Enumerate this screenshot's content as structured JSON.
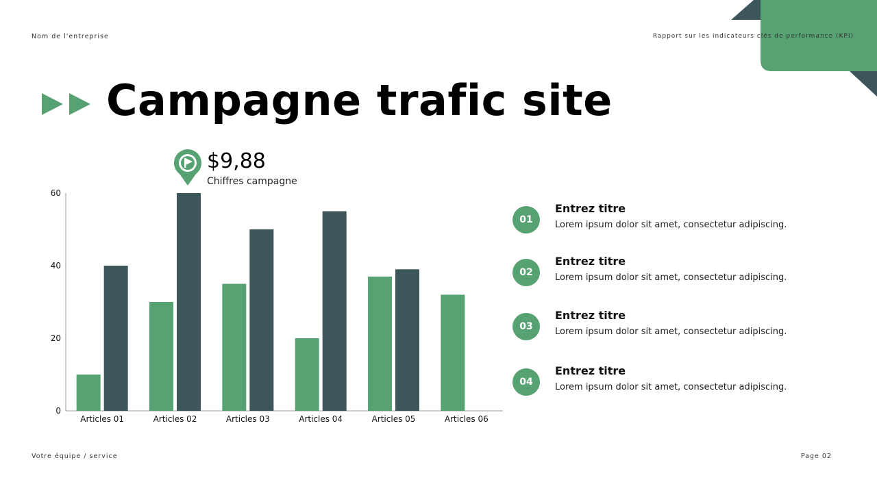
{
  "header": {
    "company": "Nom de l'entreprise",
    "report": "Rapport sur les indicateurs clés de performance (KPI)"
  },
  "title": "Campagne trafic site",
  "kpi": {
    "value": "$9,88",
    "label": "Chiffres campagne",
    "icon": "flag-pin-icon"
  },
  "colors": {
    "green": "#57a273",
    "dark": "#3c565b"
  },
  "chart_data": {
    "type": "bar",
    "categories": [
      "Articles 01",
      "Articles 02",
      "Articles 03",
      "Articles 04",
      "Articles 05",
      "Articles 06"
    ],
    "series": [
      {
        "values": [
          10,
          30,
          35,
          20,
          37,
          32
        ],
        "color": "#57a273"
      },
      {
        "values": [
          40,
          60,
          50,
          55,
          39,
          null
        ],
        "color": "#3c565b"
      }
    ],
    "ylim": [
      0,
      60
    ],
    "yticks": [
      "0",
      "20",
      "40",
      "60"
    ],
    "grid": false,
    "legend": "none"
  },
  "items": [
    {
      "num": "01",
      "title": "Entrez titre",
      "desc": "Lorem ipsum dolor sit amet, consectetur adipiscing."
    },
    {
      "num": "02",
      "title": "Entrez titre",
      "desc": "Lorem ipsum dolor sit amet, consectetur adipiscing."
    },
    {
      "num": "03",
      "title": "Entrez titre",
      "desc": "Lorem ipsum dolor sit amet, consectetur adipiscing."
    },
    {
      "num": "04",
      "title": "Entrez titre",
      "desc": "Lorem ipsum dolor sit amet, consectetur adipiscing."
    }
  ],
  "footer": {
    "team": "Votre équipe / service",
    "page": "Page 02"
  }
}
